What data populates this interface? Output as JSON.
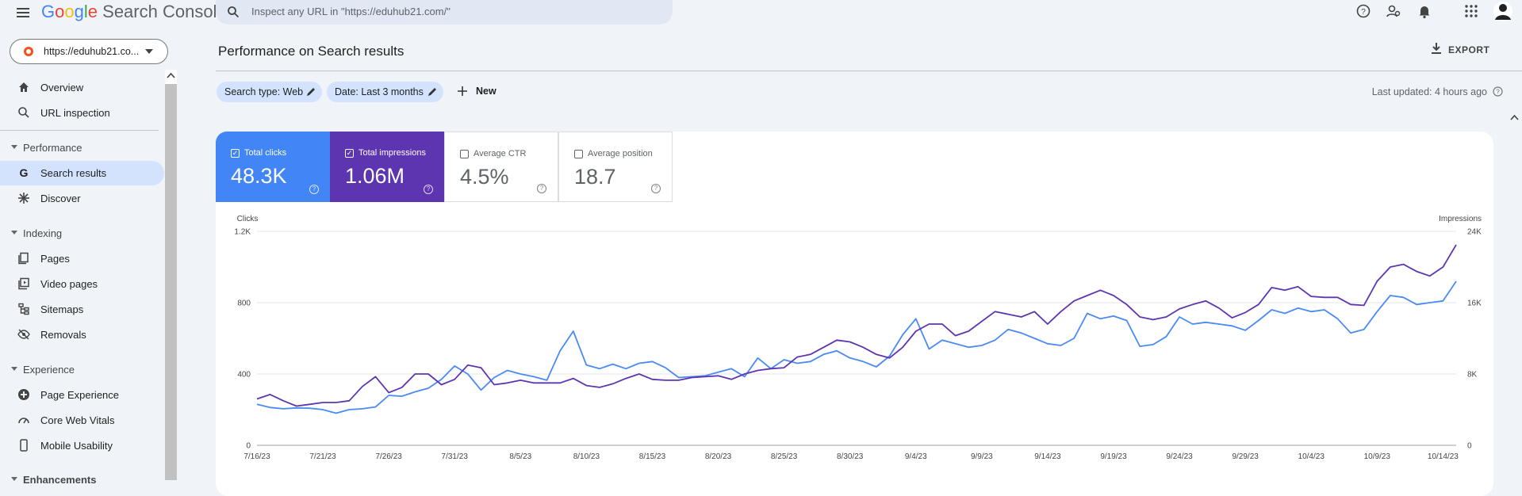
{
  "header": {
    "logo_google": "Google",
    "logo_product": "Search Console",
    "search_placeholder": "Inspect any URL in \"https://eduhub21.com/\""
  },
  "property": "https://eduhub21.co...",
  "sidebar": {
    "top": [
      "Overview",
      "URL inspection"
    ],
    "sections": [
      {
        "title": "Performance",
        "items": [
          "Search results",
          "Discover"
        ]
      },
      {
        "title": "Indexing",
        "items": [
          "Pages",
          "Video pages",
          "Sitemaps",
          "Removals"
        ]
      },
      {
        "title": "Experience",
        "items": [
          "Page Experience",
          "Core Web Vitals",
          "Mobile Usability"
        ]
      },
      {
        "title": "Enhancements"
      }
    ]
  },
  "page": {
    "title": "Performance on Search results",
    "export": "EXPORT",
    "filters": [
      "Search type: Web",
      "Date: Last 3 months"
    ],
    "new": "New",
    "last_updated": "Last updated: 4 hours ago"
  },
  "metrics": [
    {
      "label": "Total clicks",
      "value": "48.3K"
    },
    {
      "label": "Total impressions",
      "value": "1.06M"
    },
    {
      "label": "Average CTR",
      "value": "4.5%"
    },
    {
      "label": "Average position",
      "value": "18.7"
    }
  ],
  "chart_data": {
    "type": "line",
    "y_label": "Clicks",
    "y2_label": "Impressions",
    "grid": true,
    "categories": [
      "7/16/23",
      null,
      null,
      null,
      null,
      "7/21/23",
      null,
      null,
      null,
      null,
      "7/26/23",
      null,
      null,
      null,
      null,
      "7/31/23",
      null,
      null,
      null,
      null,
      "8/5/23",
      null,
      null,
      null,
      null,
      "8/10/23",
      null,
      null,
      null,
      null,
      "8/15/23",
      null,
      null,
      null,
      null,
      "8/20/23",
      null,
      null,
      null,
      null,
      "8/25/23",
      null,
      null,
      null,
      null,
      "8/30/23",
      null,
      null,
      null,
      null,
      "9/4/23",
      null,
      null,
      null,
      null,
      "9/9/23",
      null,
      null,
      null,
      null,
      "9/14/23",
      null,
      null,
      null,
      null,
      "9/19/23",
      null,
      null,
      null,
      null,
      "9/24/23",
      null,
      null,
      null,
      null,
      "9/29/23",
      null,
      null,
      null,
      null,
      "10/4/23",
      null,
      null,
      null,
      null,
      "10/9/23",
      null,
      null,
      null,
      null,
      "10/14/23",
      null
    ],
    "ylim": [
      0,
      1200
    ],
    "yticks": [
      0,
      400,
      800,
      {
        "value": 1200,
        "label": "1.2K"
      }
    ],
    "y2lim": [
      0,
      24000
    ],
    "y2ticks": [
      0,
      {
        "value": 8000,
        "label": "8K"
      },
      {
        "value": 16000,
        "label": "16K"
      },
      {
        "value": 24000,
        "label": "24K"
      }
    ],
    "series": [
      {
        "color": "#4a8af4",
        "values": [
          230,
          212,
          205,
          210,
          208,
          200,
          180,
          200,
          205,
          215,
          280,
          275,
          300,
          320,
          370,
          445,
          400,
          310,
          380,
          420,
          400,
          385,
          365,
          530,
          640,
          450,
          430,
          455,
          430,
          460,
          470,
          435,
          380,
          385,
          390,
          410,
          430,
          385,
          490,
          430,
          480,
          460,
          470,
          510,
          530,
          490,
          470,
          440,
          500,
          620,
          710,
          540,
          590,
          570,
          550,
          560,
          590,
          650,
          630,
          600,
          570,
          560,
          600,
          740,
          710,
          725,
          700,
          555,
          565,
          610,
          720,
          680,
          690,
          680,
          670,
          645,
          700,
          760,
          740,
          770,
          750,
          760,
          710,
          630,
          650,
          750,
          840,
          830,
          790,
          800,
          810,
          920
        ]
      },
      {
        "color": "#5e35b1",
        "axis": "y2",
        "values": [
          5200,
          5700,
          5000,
          4400,
          4600,
          4800,
          4800,
          5000,
          6600,
          7700,
          5900,
          6500,
          8000,
          8000,
          6800,
          7400,
          9000,
          8700,
          6800,
          7000,
          7300,
          7000,
          7000,
          7000,
          7500,
          6700,
          6500,
          6900,
          7500,
          8000,
          7400,
          7300,
          7300,
          7600,
          7700,
          7800,
          7400,
          8000,
          8400,
          8600,
          8700,
          9900,
          10200,
          11000,
          11800,
          11600,
          11000,
          10200,
          9800,
          11000,
          12800,
          13600,
          13600,
          12300,
          12800,
          13900,
          15000,
          14700,
          14400,
          15000,
          13600,
          15000,
          16200,
          16800,
          17400,
          16800,
          15800,
          14400,
          14100,
          14400,
          15300,
          15800,
          16200,
          15400,
          14300,
          14900,
          15800,
          17700,
          17400,
          17800,
          16700,
          16600,
          16600,
          15800,
          15700,
          18400,
          20000,
          20300,
          19500,
          19000,
          20000,
          22500
        ]
      }
    ]
  }
}
